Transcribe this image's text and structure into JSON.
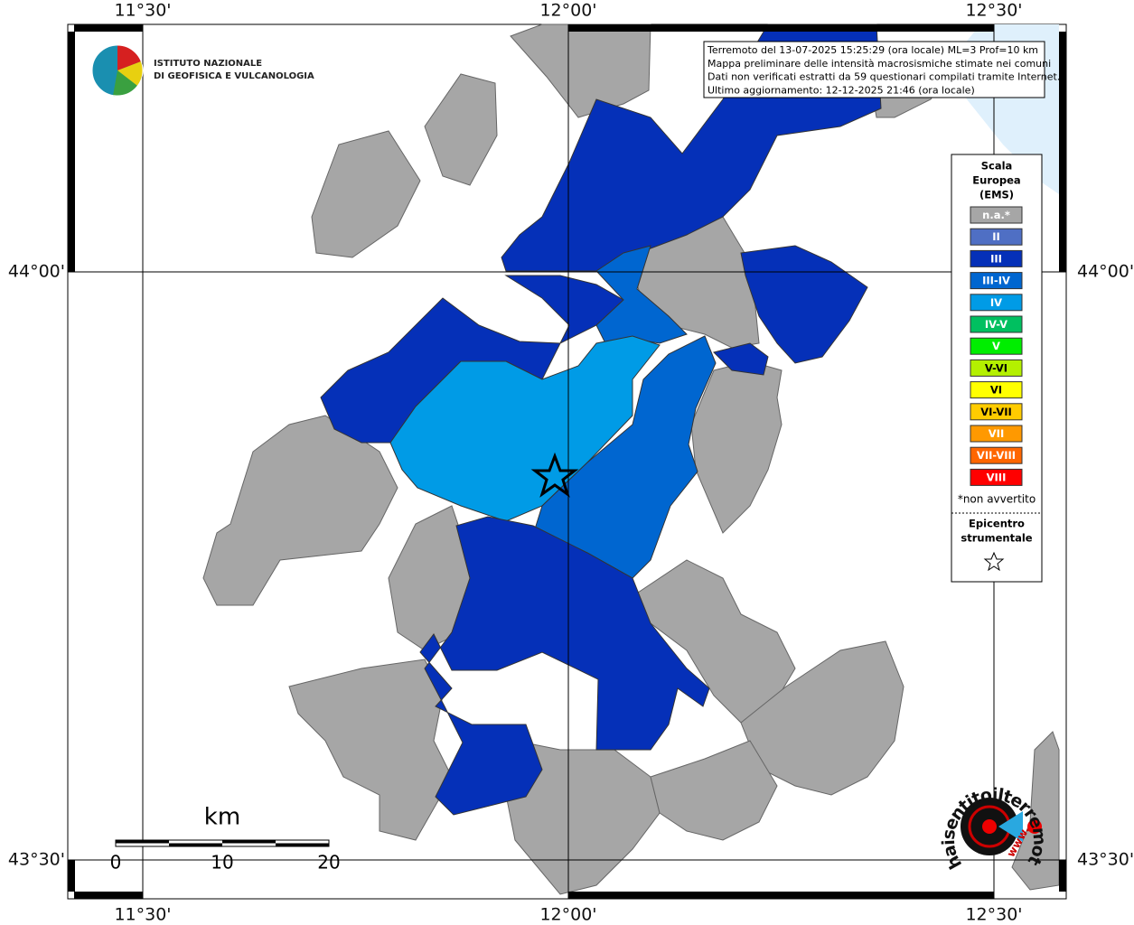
{
  "map": {
    "lon_labels": [
      "11°30'",
      "12°00'",
      "12°30'"
    ],
    "lat_labels": [
      "44°00'",
      "43°30'"
    ],
    "info": [
      "Terremoto del 13-07-2025 15:25:29 (ora locale) ML=3 Prof=10 km",
      "Mappa preliminare delle intensità macrosismiche stimate nei comuni",
      "Dati non verificati estratti da 59 questionari compilati tramite Internet.",
      "Ultimo aggiornamento: 12-12-2025 21:46 (ora locale)"
    ],
    "logo": [
      "ISTITUTO NAZIONALE",
      "DI GEOFISICA E VULCANOLOGIA"
    ],
    "legend": {
      "title": [
        "Scala",
        "Europea",
        "(EMS)"
      ],
      "classes": [
        {
          "label": "n.a.*",
          "color": "#a6a6a6"
        },
        {
          "label": "II",
          "color": "#4f6fc4"
        },
        {
          "label": "III",
          "color": "#0530b8"
        },
        {
          "label": "III-IV",
          "color": "#0066d0"
        },
        {
          "label": "IV",
          "color": "#009be6"
        },
        {
          "label": "IV-V",
          "color": "#00c060"
        },
        {
          "label": "V",
          "color": "#00ee00"
        },
        {
          "label": "V-VI",
          "color": "#b4f000"
        },
        {
          "label": "VI",
          "color": "#ffff00"
        },
        {
          "label": "VI-VII",
          "color": "#ffcc00"
        },
        {
          "label": "VII",
          "color": "#ff9900"
        },
        {
          "label": "VII-VIII",
          "color": "#ff6600"
        },
        {
          "label": "VIII",
          "color": "#ff0000"
        }
      ],
      "note": "*non avvertito",
      "epicenter": [
        "Epicentro",
        "strumentale"
      ]
    },
    "scale": {
      "unit": "km",
      "ticks": [
        0,
        10,
        20
      ]
    },
    "watermark": [
      "haisentitoilterremoto.it",
      "www."
    ]
  }
}
